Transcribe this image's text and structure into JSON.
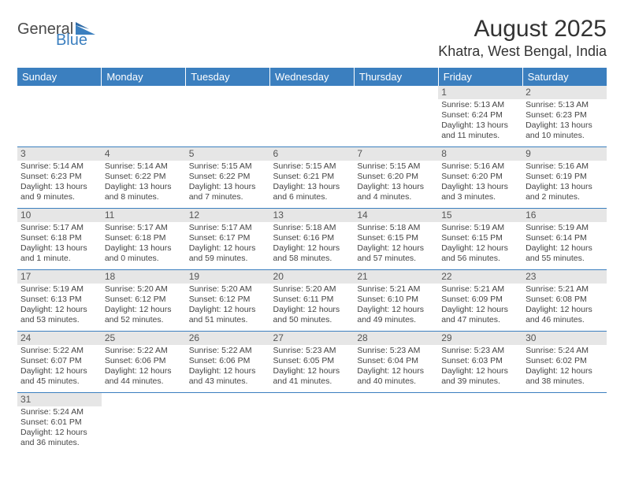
{
  "brand": {
    "part1": "General",
    "part2": "Blue"
  },
  "title": "August 2025",
  "location": "Khatra, West Bengal, India",
  "colors": {
    "header_bg": "#3b7fbf",
    "daynum_bg": "#e6e6e6",
    "row_border": "#3b7fbf"
  },
  "weekdays": [
    "Sunday",
    "Monday",
    "Tuesday",
    "Wednesday",
    "Thursday",
    "Friday",
    "Saturday"
  ],
  "weeks": [
    [
      null,
      null,
      null,
      null,
      null,
      {
        "n": "1",
        "sr": "Sunrise: 5:13 AM",
        "ss": "Sunset: 6:24 PM",
        "d1": "Daylight: 13 hours",
        "d2": "and 11 minutes."
      },
      {
        "n": "2",
        "sr": "Sunrise: 5:13 AM",
        "ss": "Sunset: 6:23 PM",
        "d1": "Daylight: 13 hours",
        "d2": "and 10 minutes."
      }
    ],
    [
      {
        "n": "3",
        "sr": "Sunrise: 5:14 AM",
        "ss": "Sunset: 6:23 PM",
        "d1": "Daylight: 13 hours",
        "d2": "and 9 minutes."
      },
      {
        "n": "4",
        "sr": "Sunrise: 5:14 AM",
        "ss": "Sunset: 6:22 PM",
        "d1": "Daylight: 13 hours",
        "d2": "and 8 minutes."
      },
      {
        "n": "5",
        "sr": "Sunrise: 5:15 AM",
        "ss": "Sunset: 6:22 PM",
        "d1": "Daylight: 13 hours",
        "d2": "and 7 minutes."
      },
      {
        "n": "6",
        "sr": "Sunrise: 5:15 AM",
        "ss": "Sunset: 6:21 PM",
        "d1": "Daylight: 13 hours",
        "d2": "and 6 minutes."
      },
      {
        "n": "7",
        "sr": "Sunrise: 5:15 AM",
        "ss": "Sunset: 6:20 PM",
        "d1": "Daylight: 13 hours",
        "d2": "and 4 minutes."
      },
      {
        "n": "8",
        "sr": "Sunrise: 5:16 AM",
        "ss": "Sunset: 6:20 PM",
        "d1": "Daylight: 13 hours",
        "d2": "and 3 minutes."
      },
      {
        "n": "9",
        "sr": "Sunrise: 5:16 AM",
        "ss": "Sunset: 6:19 PM",
        "d1": "Daylight: 13 hours",
        "d2": "and 2 minutes."
      }
    ],
    [
      {
        "n": "10",
        "sr": "Sunrise: 5:17 AM",
        "ss": "Sunset: 6:18 PM",
        "d1": "Daylight: 13 hours",
        "d2": "and 1 minute."
      },
      {
        "n": "11",
        "sr": "Sunrise: 5:17 AM",
        "ss": "Sunset: 6:18 PM",
        "d1": "Daylight: 13 hours",
        "d2": "and 0 minutes."
      },
      {
        "n": "12",
        "sr": "Sunrise: 5:17 AM",
        "ss": "Sunset: 6:17 PM",
        "d1": "Daylight: 12 hours",
        "d2": "and 59 minutes."
      },
      {
        "n": "13",
        "sr": "Sunrise: 5:18 AM",
        "ss": "Sunset: 6:16 PM",
        "d1": "Daylight: 12 hours",
        "d2": "and 58 minutes."
      },
      {
        "n": "14",
        "sr": "Sunrise: 5:18 AM",
        "ss": "Sunset: 6:15 PM",
        "d1": "Daylight: 12 hours",
        "d2": "and 57 minutes."
      },
      {
        "n": "15",
        "sr": "Sunrise: 5:19 AM",
        "ss": "Sunset: 6:15 PM",
        "d1": "Daylight: 12 hours",
        "d2": "and 56 minutes."
      },
      {
        "n": "16",
        "sr": "Sunrise: 5:19 AM",
        "ss": "Sunset: 6:14 PM",
        "d1": "Daylight: 12 hours",
        "d2": "and 55 minutes."
      }
    ],
    [
      {
        "n": "17",
        "sr": "Sunrise: 5:19 AM",
        "ss": "Sunset: 6:13 PM",
        "d1": "Daylight: 12 hours",
        "d2": "and 53 minutes."
      },
      {
        "n": "18",
        "sr": "Sunrise: 5:20 AM",
        "ss": "Sunset: 6:12 PM",
        "d1": "Daylight: 12 hours",
        "d2": "and 52 minutes."
      },
      {
        "n": "19",
        "sr": "Sunrise: 5:20 AM",
        "ss": "Sunset: 6:12 PM",
        "d1": "Daylight: 12 hours",
        "d2": "and 51 minutes."
      },
      {
        "n": "20",
        "sr": "Sunrise: 5:20 AM",
        "ss": "Sunset: 6:11 PM",
        "d1": "Daylight: 12 hours",
        "d2": "and 50 minutes."
      },
      {
        "n": "21",
        "sr": "Sunrise: 5:21 AM",
        "ss": "Sunset: 6:10 PM",
        "d1": "Daylight: 12 hours",
        "d2": "and 49 minutes."
      },
      {
        "n": "22",
        "sr": "Sunrise: 5:21 AM",
        "ss": "Sunset: 6:09 PM",
        "d1": "Daylight: 12 hours",
        "d2": "and 47 minutes."
      },
      {
        "n": "23",
        "sr": "Sunrise: 5:21 AM",
        "ss": "Sunset: 6:08 PM",
        "d1": "Daylight: 12 hours",
        "d2": "and 46 minutes."
      }
    ],
    [
      {
        "n": "24",
        "sr": "Sunrise: 5:22 AM",
        "ss": "Sunset: 6:07 PM",
        "d1": "Daylight: 12 hours",
        "d2": "and 45 minutes."
      },
      {
        "n": "25",
        "sr": "Sunrise: 5:22 AM",
        "ss": "Sunset: 6:06 PM",
        "d1": "Daylight: 12 hours",
        "d2": "and 44 minutes."
      },
      {
        "n": "26",
        "sr": "Sunrise: 5:22 AM",
        "ss": "Sunset: 6:06 PM",
        "d1": "Daylight: 12 hours",
        "d2": "and 43 minutes."
      },
      {
        "n": "27",
        "sr": "Sunrise: 5:23 AM",
        "ss": "Sunset: 6:05 PM",
        "d1": "Daylight: 12 hours",
        "d2": "and 41 minutes."
      },
      {
        "n": "28",
        "sr": "Sunrise: 5:23 AM",
        "ss": "Sunset: 6:04 PM",
        "d1": "Daylight: 12 hours",
        "d2": "and 40 minutes."
      },
      {
        "n": "29",
        "sr": "Sunrise: 5:23 AM",
        "ss": "Sunset: 6:03 PM",
        "d1": "Daylight: 12 hours",
        "d2": "and 39 minutes."
      },
      {
        "n": "30",
        "sr": "Sunrise: 5:24 AM",
        "ss": "Sunset: 6:02 PM",
        "d1": "Daylight: 12 hours",
        "d2": "and 38 minutes."
      }
    ],
    [
      {
        "n": "31",
        "sr": "Sunrise: 5:24 AM",
        "ss": "Sunset: 6:01 PM",
        "d1": "Daylight: 12 hours",
        "d2": "and 36 minutes."
      },
      null,
      null,
      null,
      null,
      null,
      null
    ]
  ]
}
